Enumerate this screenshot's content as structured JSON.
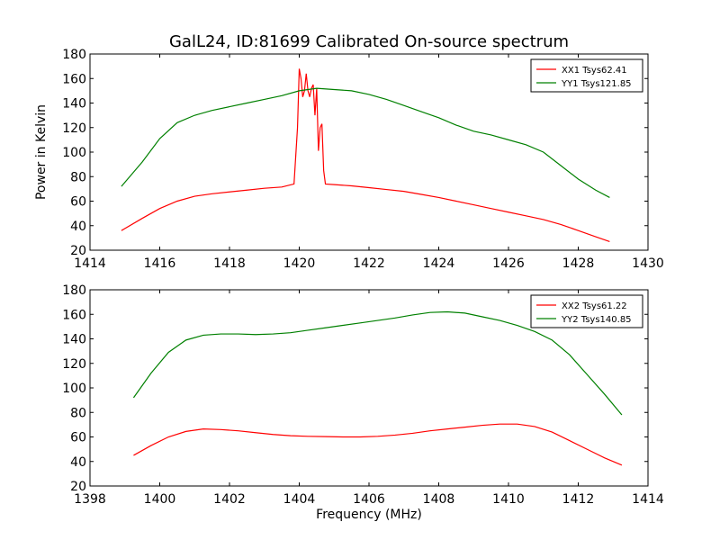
{
  "chart_data": [
    {
      "type": "line",
      "title": "GalL24, ID:81699 Calibrated On-source spectrum",
      "xlabel": "",
      "ylabel": "Power in Kelvin",
      "xlim": [
        1414,
        1430
      ],
      "ylim": [
        20,
        180
      ],
      "xticks": [
        "1414",
        "1416",
        "1418",
        "1420",
        "1422",
        "1424",
        "1426",
        "1428",
        "1430"
      ],
      "yticks": [
        "20",
        "40",
        "60",
        "80",
        "100",
        "120",
        "140",
        "160",
        "180"
      ],
      "legend_position": "top-right",
      "series": [
        {
          "name": "XX1 Tsys62.41",
          "color": "#ff0000",
          "x": [
            1414.9,
            1415.5,
            1416,
            1416.5,
            1417,
            1417.5,
            1418,
            1418.5,
            1419,
            1419.5,
            1419.85,
            1419.95,
            1420.0,
            1420.05,
            1420.1,
            1420.15,
            1420.2,
            1420.25,
            1420.3,
            1420.35,
            1420.4,
            1420.45,
            1420.5,
            1420.55,
            1420.6,
            1420.65,
            1420.7,
            1420.75,
            1421,
            1421.5,
            1422,
            1422.5,
            1423,
            1423.5,
            1424,
            1424.5,
            1425,
            1425.5,
            1426,
            1426.5,
            1427,
            1427.5,
            1428,
            1428.5,
            1428.9
          ],
          "values": [
            36,
            46,
            54,
            60,
            64,
            66,
            67.5,
            69,
            70.5,
            71.5,
            74,
            120,
            168,
            160,
            145,
            150,
            164,
            150,
            145,
            152,
            155,
            130,
            152,
            101,
            120,
            123,
            85,
            74,
            73.5,
            72.5,
            71,
            69.5,
            68,
            65.5,
            63,
            60,
            57,
            54,
            51,
            48,
            45,
            41,
            36,
            31,
            27
          ]
        },
        {
          "name": "YY1 Tsys121.85",
          "color": "#008000",
          "x": [
            1414.9,
            1415.5,
            1416,
            1416.5,
            1417,
            1417.5,
            1418,
            1418.5,
            1419,
            1419.5,
            1420,
            1420.5,
            1421,
            1421.5,
            1422,
            1422.5,
            1423,
            1423.5,
            1424,
            1424.5,
            1425,
            1425.5,
            1426,
            1426.5,
            1427,
            1427.5,
            1428,
            1428.5,
            1428.9
          ],
          "values": [
            72,
            92,
            111,
            124,
            130,
            134,
            137,
            140,
            143,
            146,
            150,
            152,
            151,
            150,
            147,
            143,
            138,
            133,
            128,
            122,
            117,
            114,
            110,
            106,
            100,
            89,
            78,
            69,
            63
          ]
        }
      ]
    },
    {
      "type": "line",
      "title": "",
      "xlabel": "Frequency (MHz)",
      "ylabel": "",
      "xlim": [
        1398,
        1414
      ],
      "ylim": [
        20,
        180
      ],
      "xticks": [
        "1398",
        "1400",
        "1402",
        "1404",
        "1406",
        "1408",
        "1410",
        "1412",
        "1414"
      ],
      "yticks": [
        "20",
        "40",
        "60",
        "80",
        "100",
        "120",
        "140",
        "160",
        "180"
      ],
      "legend_position": "top-right",
      "series": [
        {
          "name": "XX2 Tsys61.22",
          "color": "#ff0000",
          "x": [
            1399.25,
            1399.75,
            1400.25,
            1400.75,
            1401.25,
            1401.75,
            1402.25,
            1402.75,
            1403.25,
            1403.75,
            1404.25,
            1404.75,
            1405.25,
            1405.75,
            1406.25,
            1406.75,
            1407.25,
            1407.75,
            1408.25,
            1408.75,
            1409.25,
            1409.75,
            1410.25,
            1410.75,
            1411.25,
            1411.75,
            1412.25,
            1412.75,
            1413.25
          ],
          "values": [
            45,
            53,
            60,
            64.5,
            66.5,
            66,
            65,
            63.5,
            62,
            61,
            60.5,
            60.3,
            60,
            60,
            60.5,
            61.5,
            63,
            65,
            66.5,
            68,
            69.5,
            70.5,
            70.5,
            68.5,
            64,
            57,
            50,
            43,
            37
          ]
        },
        {
          "name": "YY2 Tsys140.85",
          "color": "#008000",
          "x": [
            1399.25,
            1399.75,
            1400.25,
            1400.75,
            1401.25,
            1401.75,
            1402.25,
            1402.75,
            1403.25,
            1403.75,
            1404.25,
            1404.75,
            1405.25,
            1405.75,
            1406.25,
            1406.75,
            1407.25,
            1407.75,
            1408.25,
            1408.75,
            1409.25,
            1409.75,
            1410.25,
            1410.75,
            1411.25,
            1411.75,
            1412.25,
            1412.75,
            1413.25
          ],
          "values": [
            92,
            112,
            129,
            139,
            143,
            144,
            144,
            143.5,
            144,
            145,
            147,
            149,
            151,
            153,
            155,
            157,
            159.5,
            161.5,
            162,
            161,
            158,
            155,
            151,
            146,
            139,
            127,
            111,
            95,
            78
          ]
        }
      ]
    }
  ]
}
